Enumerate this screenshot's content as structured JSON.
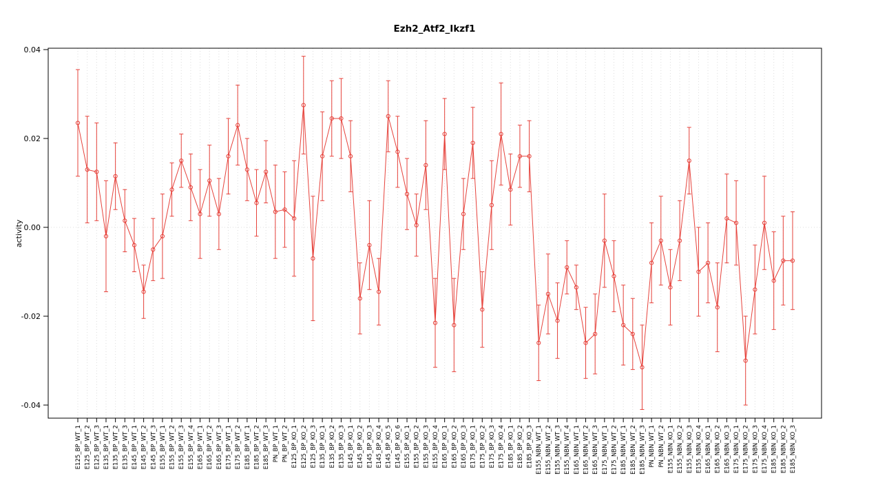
{
  "chart_data": {
    "type": "line",
    "title": "Ezh2_Atf2_Ikzf1",
    "xlabel": "",
    "ylabel": "activity",
    "ylim": [
      -0.04,
      0.04
    ],
    "yticks": [
      -0.04,
      -0.02,
      0,
      0.02,
      0.04
    ],
    "grid": "vertical dotted gridline per category, dotted horizontal line at y=0",
    "legend_position": "none",
    "point_style": "open-circle",
    "error_bars": true,
    "series_color": "#e6413a",
    "grid_color": "#dcdcdc",
    "axis_color": "#000000",
    "categories": [
      "E125_BP_WT_1",
      "E125_BP_WT_2",
      "E125_BP_WT_3",
      "E135_BP_WT_1",
      "E135_BP_WT_2",
      "E135_BP_WT_3",
      "E145_BP_WT_1",
      "E145_BP_WT_2",
      "E145_BP_WT_3",
      "E155_BP_WT_1",
      "E155_BP_WT_2",
      "E155_BP_WT_3",
      "E155_BP_WT_4",
      "E165_BP_WT_1",
      "E165_BP_WT_2",
      "E165_BP_WT_3",
      "E175_BP_WT_1",
      "E175_BP_WT_2",
      "E185_BP_WT_1",
      "E185_BP_WT_2",
      "E185_BP_WT_3",
      "PN_BP_WT_1",
      "PN_BP_WT_2",
      "E125_BP_KO_1",
      "E125_BP_KO_2",
      "E125_BP_KO_3",
      "E135_BP_KO_1",
      "E135_BP_KO_2",
      "E135_BP_KO_3",
      "E145_BP_KO_1",
      "E145_BP_KO_2",
      "E145_BP_KO_3",
      "E145_BP_KO_4",
      "E145_BP_KO_5",
      "E145_BP_KO_6",
      "E155_BP_KO_1",
      "E155_BP_KO_2",
      "E155_BP_KO_3",
      "E155_BP_KO_4",
      "E165_BP_KO_1",
      "E165_BP_KO_2",
      "E165_BP_KO_3",
      "E175_BP_KO_1",
      "E175_BP_KO_2",
      "E175_BP_KO_3",
      "E175_BP_KO_4",
      "E185_BP_KO_1",
      "E185_BP_KO_2",
      "E185_BP_KO_3",
      "E155_NBN_WT_1",
      "E155_NBN_WT_2",
      "E155_NBN_WT_3",
      "E155_NBN_WT_4",
      "E165_NBN_WT_1",
      "E165_NBN_WT_2",
      "E165_NBN_WT_3",
      "E175_NBN_WT_1",
      "E175_NBN_WT_2",
      "E185_NBN_WT_1",
      "E185_NBN_WT_2",
      "E185_NBN_WT_3",
      "PN_NBN_WT_1",
      "PN_NBN_WT_2",
      "E155_NBN_KO_1",
      "E155_NBN_KO_2",
      "E155_NBN_KO_3",
      "E155_NBN_KO_4",
      "E165_NBN_KO_1",
      "E165_NBN_KO_2",
      "E165_NBN_KO_3",
      "E175_NBN_KO_1",
      "E175_NBN_KO_2",
      "E175_NBN_KO_3",
      "E175_NBN_KO_4",
      "E185_NBN_KO_1",
      "E185_NBN_KO_2",
      "E185_NBN_KO_3"
    ],
    "values": [
      0.0235,
      0.013,
      0.0125,
      -0.002,
      0.0115,
      0.0015,
      -0.004,
      -0.0145,
      -0.005,
      -0.002,
      0.0085,
      0.015,
      0.009,
      0.003,
      0.0105,
      0.003,
      0.016,
      0.023,
      0.013,
      0.0055,
      0.0125,
      0.0035,
      0.004,
      0.002,
      0.0275,
      -0.007,
      0.016,
      0.0245,
      0.0245,
      0.016,
      -0.016,
      -0.004,
      -0.0145,
      0.025,
      0.017,
      0.0075,
      0.0005,
      0.014,
      -0.0215,
      0.021,
      -0.022,
      0.003,
      0.019,
      -0.0185,
      0.005,
      0.021,
      0.0085,
      0.016,
      0.016,
      -0.026,
      -0.015,
      -0.021,
      -0.009,
      -0.0135,
      -0.026,
      -0.024,
      -0.003,
      -0.011,
      -0.022,
      -0.024,
      -0.0315,
      -0.008,
      -0.003,
      -0.0135,
      -0.003,
      0.015,
      -0.01,
      -0.008,
      -0.018,
      0.002,
      0.001,
      -0.03,
      -0.014,
      0.001,
      -0.012,
      -0.0075,
      -0.0075
    ],
    "errors": [
      0.012,
      0.012,
      0.011,
      0.0125,
      0.0075,
      0.007,
      0.006,
      0.006,
      0.007,
      0.0095,
      0.006,
      0.006,
      0.0075,
      0.01,
      0.008,
      0.008,
      0.0085,
      0.009,
      0.007,
      0.0075,
      0.007,
      0.0105,
      0.0085,
      0.013,
      0.011,
      0.014,
      0.01,
      0.0085,
      0.009,
      0.008,
      0.008,
      0.01,
      0.0075,
      0.008,
      0.008,
      0.008,
      0.007,
      0.01,
      0.01,
      0.008,
      0.0105,
      0.008,
      0.008,
      0.0085,
      0.01,
      0.0115,
      0.008,
      0.007,
      0.008,
      0.0085,
      0.009,
      0.0085,
      0.006,
      0.005,
      0.008,
      0.009,
      0.0105,
      0.008,
      0.009,
      0.008,
      0.0095,
      0.009,
      0.01,
      0.0085,
      0.009,
      0.0075,
      0.01,
      0.009,
      0.01,
      0.01,
      0.0095,
      0.01,
      0.01,
      0.0105,
      0.011,
      0.01,
      0.011
    ]
  }
}
